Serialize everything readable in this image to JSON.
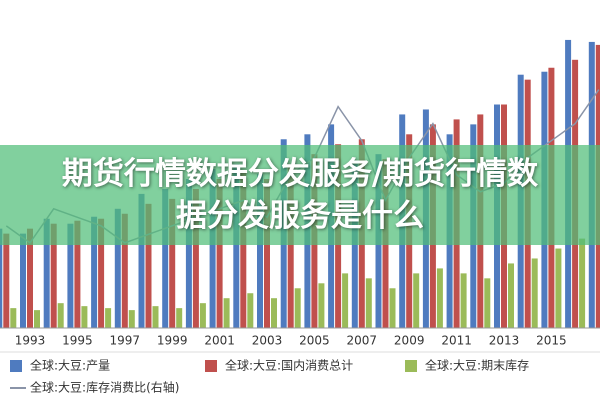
{
  "chart_data": {
    "type": "bar",
    "title": "期货行情数据分发服务/期货行情数据分发服务是什么",
    "categories": [
      null,
      "1993",
      null,
      "1995",
      null,
      "1997",
      null,
      "1999",
      null,
      "2001",
      null,
      "2003",
      null,
      "2005",
      null,
      "2007",
      null,
      "2009",
      null,
      "2011",
      null,
      "2013",
      null,
      "2015",
      null,
      null
    ],
    "ylim": [
      0,
      300
    ],
    "y2lim": [
      0,
      35
    ],
    "series": [
      {
        "name": "全球:大豆:产量",
        "color": "#4f7bbf",
        "values": [
          100,
          95,
          110,
          105,
          112,
          120,
          135,
          140,
          150,
          160,
          165,
          155,
          190,
          195,
          205,
          165,
          175,
          215,
          220,
          195,
          205,
          225,
          255,
          258,
          290,
          288
        ]
      },
      {
        "name": "全球:大豆:国内消费总计",
        "color": "#c0504d",
        "values": [
          95,
          100,
          105,
          108,
          110,
          115,
          125,
          130,
          140,
          150,
          158,
          150,
          165,
          175,
          185,
          190,
          170,
          195,
          205,
          210,
          215,
          225,
          250,
          262,
          270,
          285
        ]
      },
      {
        "name": "全球:大豆:期末库存",
        "color": "#9bbb59",
        "values": [
          20,
          18,
          25,
          22,
          20,
          18,
          22,
          20,
          25,
          30,
          35,
          30,
          40,
          45,
          55,
          50,
          40,
          55,
          60,
          55,
          50,
          65,
          70,
          80,
          90,
          95
        ]
      },
      {
        "name": "全球:大豆:库存消费比(右轴)",
        "color": "#8a94a8",
        "type": "line",
        "axis": "y2",
        "values": [
          12,
          10,
          14,
          13,
          12,
          10,
          11,
          12,
          13,
          14,
          15,
          13,
          18,
          20,
          26,
          22,
          15,
          20,
          24,
          18,
          16,
          17,
          20,
          22,
          24,
          28
        ]
      }
    ]
  }
}
